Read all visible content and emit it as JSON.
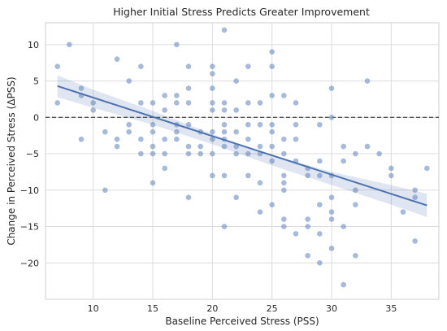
{
  "chart_data": {
    "type": "scatter",
    "title": "Higher Initial Stress Predicts Greater Improvement",
    "xlabel": "Baseline Perceived Stress (PSS)",
    "ylabel": "Change in Perceived Stress (ΔPSS)",
    "xlim": [
      6.0,
      39.0
    ],
    "ylim": [
      -25.0,
      13.0
    ],
    "xticks": [
      10,
      15,
      20,
      25,
      30,
      35
    ],
    "yticks": [
      -20,
      -15,
      -10,
      -5,
      0,
      5,
      10
    ],
    "grid": true,
    "reference_line": {
      "y": 0,
      "style": "dashed"
    },
    "regression": {
      "x_start": 7,
      "x_end": 38,
      "y_start": 4.3,
      "y_end": -12.1
    },
    "ci_band": {
      "x": [
        7,
        10,
        15,
        20,
        25,
        30,
        35,
        38
      ],
      "lower": [
        2.8,
        1.3,
        -1.0,
        -3.7,
        -6.6,
        -9.3,
        -12.0,
        -13.7
      ],
      "upper": [
        5.8,
        3.8,
        0.9,
        -2.3,
        -5.2,
        -7.5,
        -9.3,
        -10.5
      ]
    },
    "points": [
      [
        7,
        7
      ],
      [
        7,
        2
      ],
      [
        8,
        10
      ],
      [
        9,
        4
      ],
      [
        9,
        3
      ],
      [
        9,
        -3
      ],
      [
        10,
        2
      ],
      [
        10,
        1
      ],
      [
        11,
        -2
      ],
      [
        11,
        -10
      ],
      [
        12,
        8
      ],
      [
        12,
        -3
      ],
      [
        12,
        -4
      ],
      [
        13,
        5
      ],
      [
        13,
        -1
      ],
      [
        13,
        -2
      ],
      [
        14,
        7
      ],
      [
        14,
        2
      ],
      [
        14,
        -3
      ],
      [
        14,
        -5
      ],
      [
        15,
        2
      ],
      [
        15,
        -1
      ],
      [
        15,
        -2
      ],
      [
        15,
        -4
      ],
      [
        15,
        -5
      ],
      [
        15,
        -9
      ],
      [
        16,
        3
      ],
      [
        16,
        1
      ],
      [
        16,
        -3
      ],
      [
        16,
        -5
      ],
      [
        16,
        -7
      ],
      [
        17,
        10
      ],
      [
        17,
        3
      ],
      [
        17,
        2
      ],
      [
        17,
        -1
      ],
      [
        17,
        -2
      ],
      [
        17,
        -3
      ],
      [
        18,
        7
      ],
      [
        18,
        4
      ],
      [
        18,
        2
      ],
      [
        18,
        -1
      ],
      [
        18,
        -4
      ],
      [
        18,
        -5
      ],
      [
        18,
        -11
      ],
      [
        19,
        -2
      ],
      [
        19,
        -4
      ],
      [
        19,
        -5
      ],
      [
        20,
        7
      ],
      [
        20,
        6
      ],
      [
        20,
        4
      ],
      [
        20,
        2
      ],
      [
        20,
        1
      ],
      [
        20,
        -2
      ],
      [
        20,
        -3
      ],
      [
        20,
        -5
      ],
      [
        20,
        -8
      ],
      [
        21,
        12
      ],
      [
        21,
        2
      ],
      [
        21,
        1
      ],
      [
        21,
        -1
      ],
      [
        21,
        -2
      ],
      [
        21,
        -3
      ],
      [
        21,
        -4
      ],
      [
        21,
        -8
      ],
      [
        21,
        -15
      ],
      [
        22,
        5
      ],
      [
        22,
        1
      ],
      [
        22,
        -2
      ],
      [
        22,
        -4
      ],
      [
        22,
        -5
      ],
      [
        22,
        -11
      ],
      [
        23,
        7
      ],
      [
        23,
        2
      ],
      [
        23,
        -1
      ],
      [
        23,
        -3
      ],
      [
        23,
        -5
      ],
      [
        23,
        -8
      ],
      [
        24,
        2
      ],
      [
        24,
        -1
      ],
      [
        24,
        -4
      ],
      [
        24,
        -5
      ],
      [
        24,
        -9
      ],
      [
        24,
        -13
      ],
      [
        25,
        9
      ],
      [
        25,
        7
      ],
      [
        25,
        3
      ],
      [
        25,
        -1
      ],
      [
        25,
        -2
      ],
      [
        25,
        -4
      ],
      [
        25,
        -6
      ],
      [
        25,
        -12
      ],
      [
        26,
        3
      ],
      [
        26,
        -3
      ],
      [
        26,
        -5
      ],
      [
        26,
        -8
      ],
      [
        26,
        -9
      ],
      [
        26,
        -10
      ],
      [
        26,
        -14
      ],
      [
        26,
        -15
      ],
      [
        27,
        2
      ],
      [
        27,
        -1
      ],
      [
        27,
        -3
      ],
      [
        27,
        -6
      ],
      [
        27,
        -16
      ],
      [
        28,
        -7
      ],
      [
        28,
        -8
      ],
      [
        28,
        -14
      ],
      [
        28,
        -15
      ],
      [
        28,
        -19
      ],
      [
        29,
        -1
      ],
      [
        29,
        -6
      ],
      [
        29,
        -8
      ],
      [
        29,
        -12
      ],
      [
        29,
        -16
      ],
      [
        29,
        -20
      ],
      [
        30,
        4
      ],
      [
        30,
        0
      ],
      [
        30,
        -8
      ],
      [
        30,
        -11
      ],
      [
        30,
        -13
      ],
      [
        30,
        -14
      ],
      [
        30,
        -18
      ],
      [
        31,
        -4
      ],
      [
        31,
        -6
      ],
      [
        31,
        -15
      ],
      [
        31,
        -23
      ],
      [
        32,
        -5
      ],
      [
        32,
        -10
      ],
      [
        32,
        -12
      ],
      [
        32,
        -19
      ],
      [
        33,
        5
      ],
      [
        33,
        -4
      ],
      [
        34,
        -5
      ],
      [
        35,
        -7
      ],
      [
        35,
        -8
      ],
      [
        36,
        -13
      ],
      [
        37,
        -10
      ],
      [
        37,
        -11
      ],
      [
        37,
        -17
      ],
      [
        38,
        -7
      ]
    ]
  }
}
